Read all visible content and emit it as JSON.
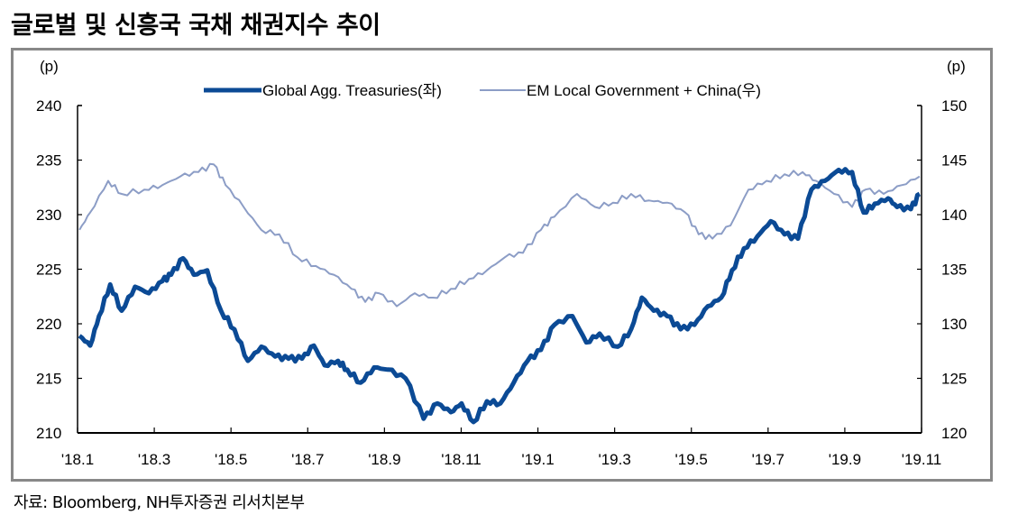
{
  "title": "글로벌 및 신흥국 국채 채권지수 추이",
  "source": "자료: Bloomberg, NH투자증권 리서치본부",
  "chart_data": {
    "type": "line",
    "title": "글로벌 및 신흥국 국채 채권지수 추이",
    "y_left_unit": "(p)",
    "y_right_unit": "(p)",
    "y_left_lim": [
      210,
      240
    ],
    "y_right_lim": [
      120,
      150
    ],
    "y_left_ticks": [
      "210",
      "215",
      "220",
      "225",
      "230",
      "235",
      "240"
    ],
    "y_right_ticks": [
      "120",
      "125",
      "130",
      "135",
      "140",
      "145",
      "150"
    ],
    "x_unit": "months since Jan 2018",
    "x_lim": [
      0,
      22
    ],
    "x_ticks": [
      "'18.1",
      "'18.3",
      "'18.5",
      "'18.7",
      "'18.9",
      "'18.11",
      "'19.1",
      "'19.3",
      "'19.5",
      "'19.7",
      "'19.9",
      "'19.11"
    ],
    "legend_position": "top-center",
    "series": [
      {
        "name": "Global Agg. Treasuries(좌)",
        "axis": "left",
        "color": "#0b4a95",
        "x": [
          0.05,
          0.33,
          0.56,
          0.85,
          1.15,
          1.5,
          1.86,
          2.21,
          2.44,
          2.75,
          3.03,
          3.38,
          3.74,
          4.09,
          4.44,
          4.79,
          5.15,
          5.5,
          5.85,
          6.16,
          6.44,
          6.79,
          7.03,
          7.38,
          7.73,
          8.08,
          8.55,
          9.02,
          9.38,
          9.73,
          10.01,
          10.32,
          10.67,
          11.02,
          11.37,
          11.73,
          12.08,
          12.43,
          12.9,
          13.26,
          13.61,
          14.08,
          14.43,
          14.71,
          15.02,
          15.37,
          15.72,
          16.08,
          16.43,
          16.78,
          17.06,
          17.37,
          17.72,
          18.07,
          18.43,
          18.78,
          19.13,
          19.48,
          19.84,
          20.19,
          20.49,
          20.78,
          21.13,
          21.36,
          21.72,
          21.95
        ],
        "values": [
          218.9,
          218.0,
          220.7,
          223.6,
          221.2,
          223.4,
          222.8,
          223.9,
          224.5,
          226.0,
          224.5,
          224.9,
          221.2,
          219.5,
          216.6,
          217.9,
          217.0,
          216.8,
          216.8,
          218.0,
          216.2,
          216.6,
          215.8,
          214.6,
          216.0,
          215.8,
          215.0,
          211.3,
          212.7,
          211.9,
          212.7,
          211.0,
          212.9,
          212.7,
          214.6,
          216.6,
          217.6,
          219.9,
          220.7,
          218.3,
          219.1,
          217.9,
          219.5,
          222.4,
          221.2,
          220.7,
          219.5,
          219.9,
          221.6,
          222.4,
          224.9,
          226.9,
          228.0,
          229.4,
          228.2,
          227.8,
          232.3,
          233.1,
          234.1,
          233.9,
          230.2,
          231.0,
          231.5,
          230.7,
          230.5,
          231.9
        ]
      },
      {
        "name": "EM Local Government + China(우)",
        "axis": "right",
        "color": "#8c9dc6",
        "x": [
          0.05,
          0.33,
          0.8,
          1.15,
          1.74,
          2.21,
          2.68,
          3.15,
          3.55,
          3.86,
          4.33,
          4.79,
          5.26,
          5.73,
          6.21,
          6.68,
          7.14,
          7.5,
          7.85,
          8.32,
          8.79,
          9.26,
          9.73,
          10.2,
          10.67,
          11.14,
          11.61,
          12.08,
          12.43,
          13.02,
          13.49,
          13.96,
          14.43,
          14.9,
          15.37,
          15.84,
          16.19,
          16.55,
          17.02,
          17.49,
          17.96,
          18.43,
          18.9,
          19.25,
          19.72,
          20.19,
          20.54,
          21.01,
          21.48,
          21.95
        ],
        "values": [
          138.6,
          140.2,
          143.1,
          141.9,
          142.3,
          142.7,
          143.5,
          143.9,
          144.6,
          142.7,
          140.7,
          138.6,
          138.2,
          136.1,
          135.3,
          134.5,
          133.2,
          132.0,
          132.8,
          131.6,
          132.8,
          132.4,
          133.2,
          134.1,
          134.9,
          136.1,
          136.5,
          138.6,
          139.8,
          141.9,
          140.7,
          141.1,
          141.9,
          141.3,
          141.1,
          140.2,
          138.2,
          137.8,
          139.0,
          142.3,
          143.1,
          143.7,
          143.9,
          143.1,
          141.9,
          140.7,
          142.3,
          141.9,
          142.7,
          143.5
        ]
      }
    ]
  }
}
